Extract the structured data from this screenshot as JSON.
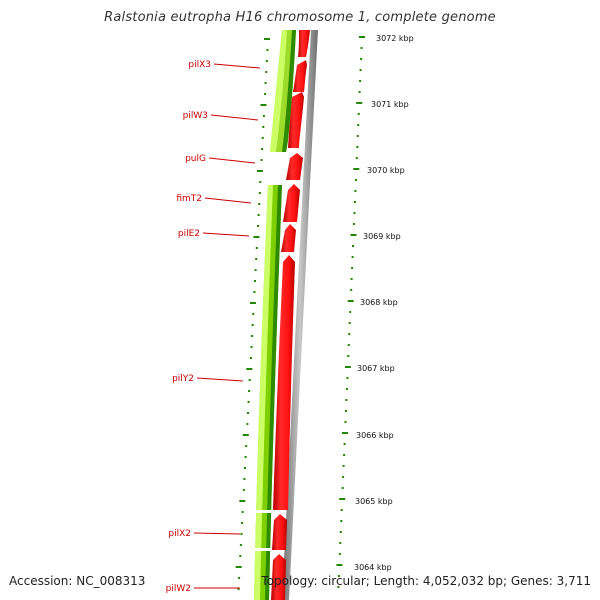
{
  "title": "Ralstonia eutropha H16 chromosome 1, complete genome",
  "footer": {
    "accession": "Accession: NC_008313",
    "topology": "Topology: circular; Length: 4,052,032 bp; Genes: 3,711"
  },
  "colors": {
    "gene_label": "#cc0000",
    "forward_strand": "#ff0000",
    "reverse_light": "#ccff66",
    "reverse_mid": "#66cc00",
    "reverse_dark": "#2e8b00",
    "tick": "#228800",
    "backbone": "#888888"
  },
  "scale": {
    "unit": "kbp",
    "labels": [
      "3072 kbp",
      "3071 kbp",
      "3070 kbp",
      "3069 kbp",
      "3068 kbp",
      "3067 kbp",
      "3066 kbp",
      "3065 kbp",
      "3064 kbp"
    ]
  },
  "genes": [
    {
      "name": "pilX3"
    },
    {
      "name": "pilW3"
    },
    {
      "name": "pulG"
    },
    {
      "name": "fimT2"
    },
    {
      "name": "pilE2"
    },
    {
      "name": "pilY2"
    },
    {
      "name": "pilX2"
    },
    {
      "name": "pilW2"
    }
  ]
}
